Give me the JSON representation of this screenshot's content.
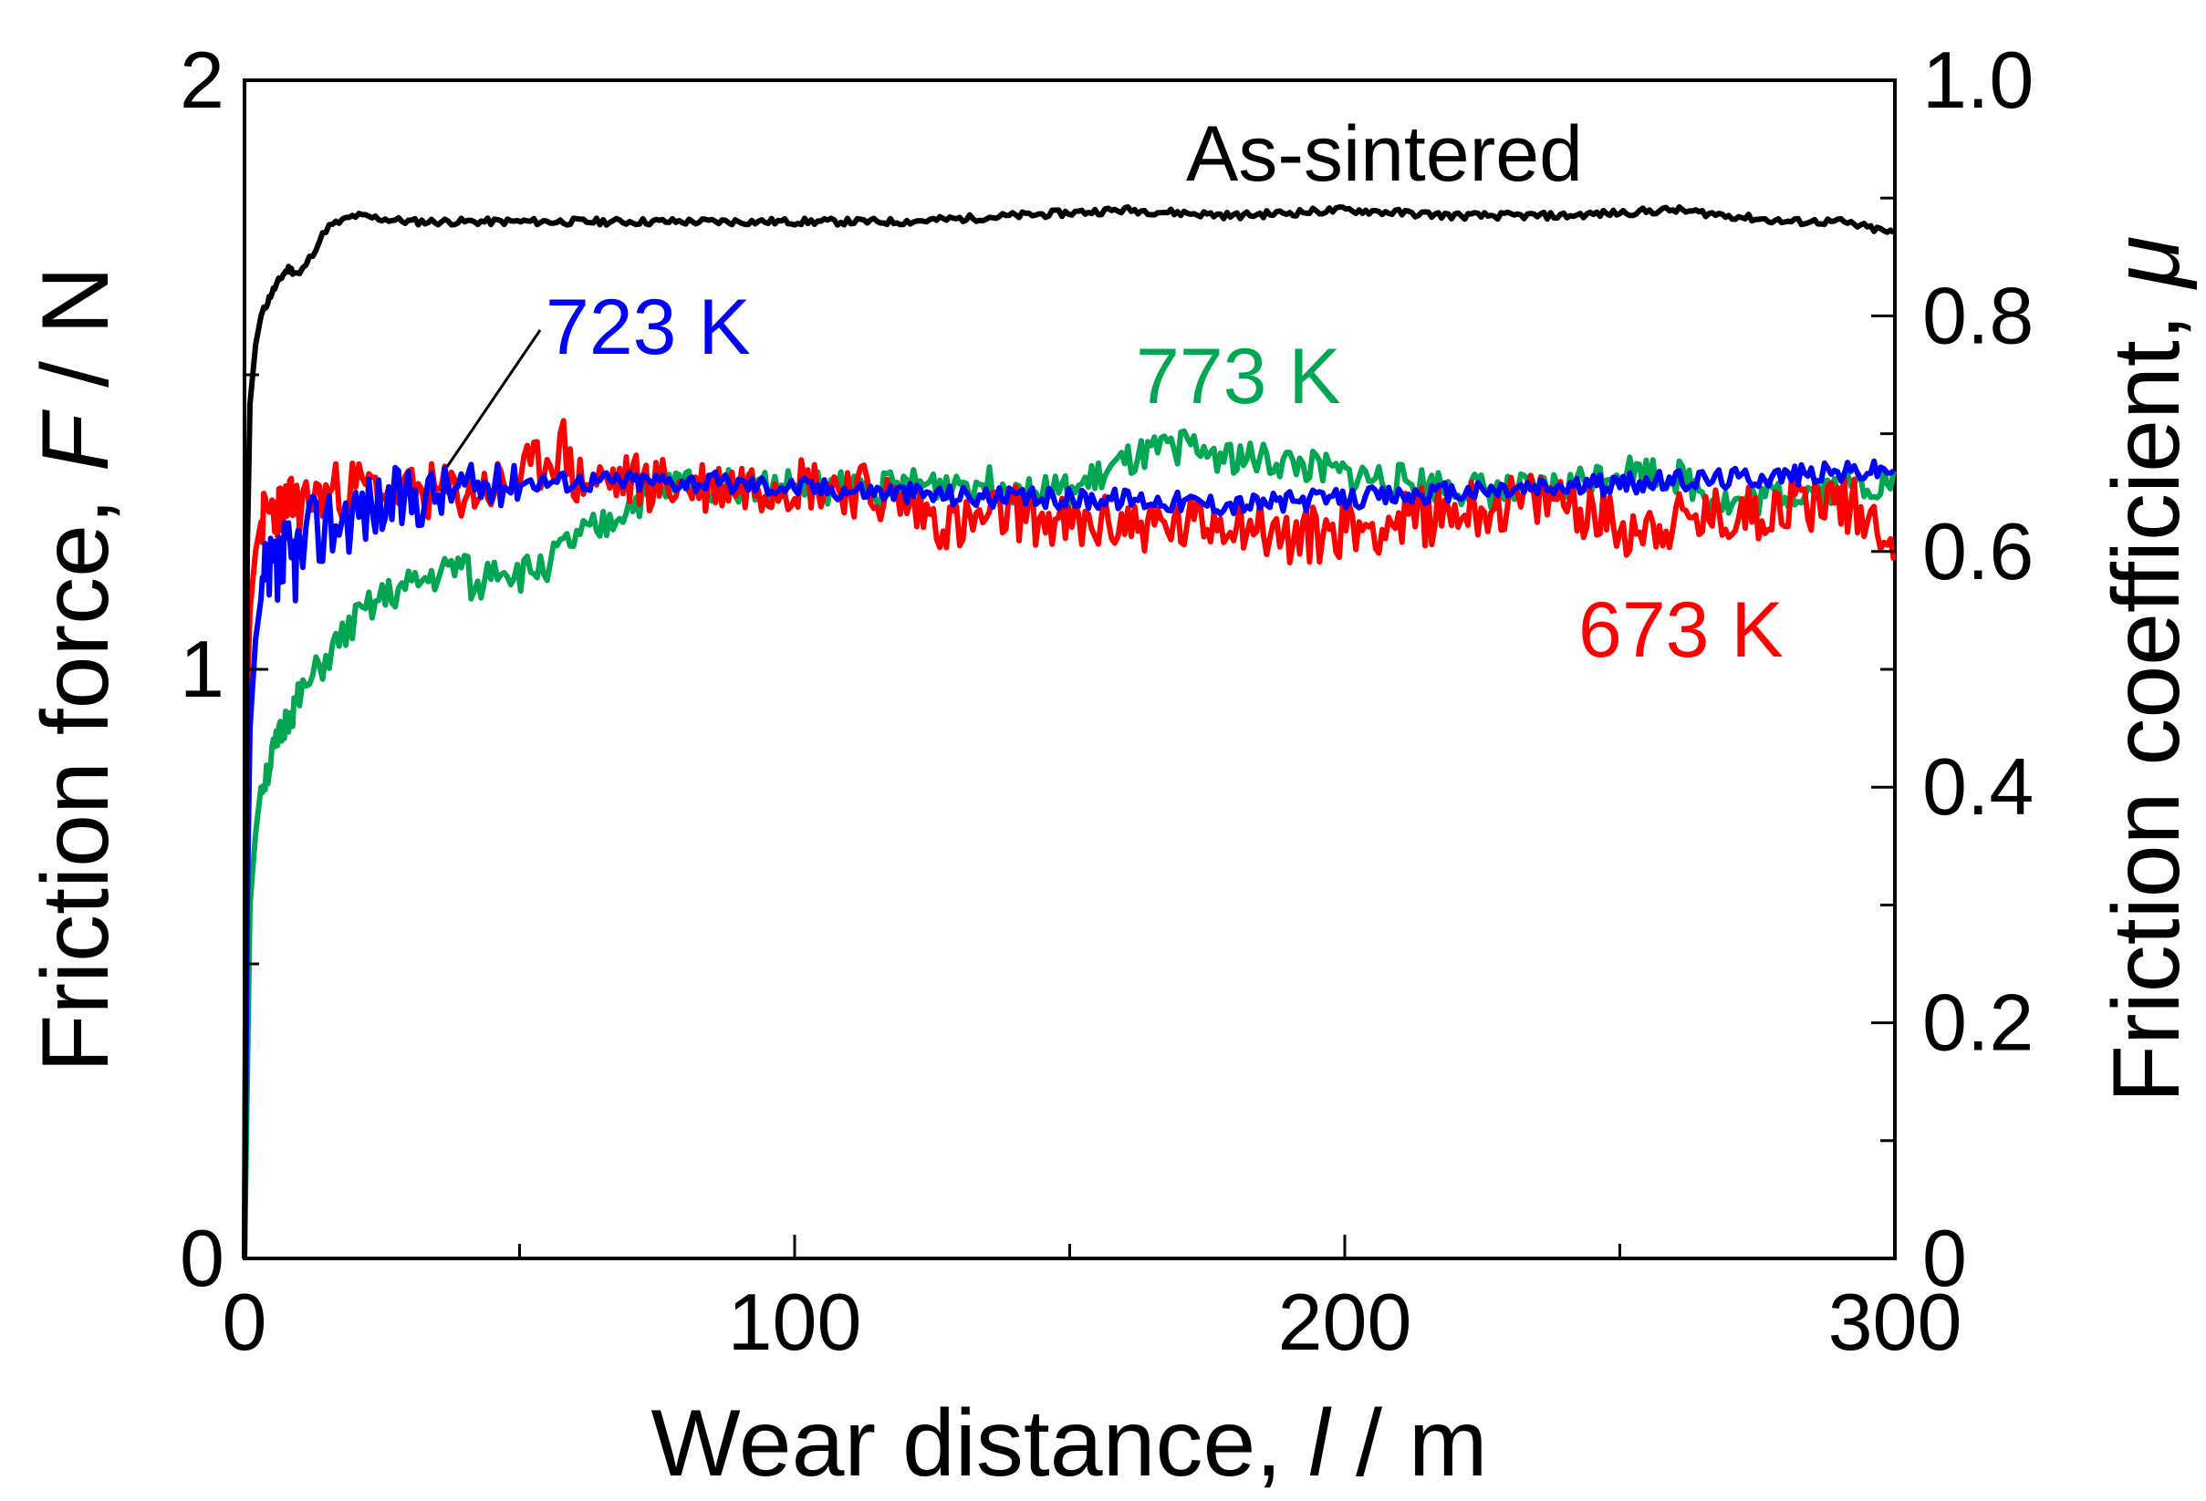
{
  "chart_data": {
    "type": "line",
    "title": "",
    "xlabel": "Wear distance, l / m",
    "xlabel_parts": {
      "main": "Wear distance, ",
      "var": "l",
      "unit": " / m"
    },
    "ylabel": "Friction force, F / N",
    "ylabel_parts": {
      "main": "Friction force, ",
      "var": "F",
      "unit": " / N"
    },
    "y2label": "Friction coefficient, μ",
    "y2label_parts": {
      "main": "Friction coefficient, ",
      "var": "μ"
    },
    "xlim": [
      0,
      300
    ],
    "ylim": [
      0,
      2
    ],
    "y2lim": [
      0,
      1.0
    ],
    "xticks": [
      0,
      100,
      200,
      300
    ],
    "xtick_labels": [
      "0",
      "100",
      "200",
      "300"
    ],
    "yticks": [
      0,
      1,
      2
    ],
    "ytick_labels": [
      "0",
      "1",
      "2"
    ],
    "y2ticks": [
      0,
      0.2,
      0.4,
      0.6,
      0.8,
      1.0
    ],
    "y2tick_labels": [
      "0",
      "0.2",
      "0.4",
      "0.6",
      "0.8",
      "1.0"
    ],
    "grid": false,
    "series": [
      {
        "name": "As-sintered",
        "label": "As-sintered",
        "color": "#000000",
        "x": [
          0,
          0.5,
          1,
          2,
          3,
          5,
          7,
          8,
          10,
          12,
          15,
          20,
          30,
          40,
          60,
          80,
          100,
          120,
          140,
          160,
          180,
          200,
          220,
          240,
          260,
          280,
          290,
          300
        ],
        "y": [
          0,
          1.2,
          1.45,
          1.55,
          1.6,
          1.64,
          1.67,
          1.68,
          1.67,
          1.7,
          1.75,
          1.77,
          1.76,
          1.76,
          1.76,
          1.76,
          1.76,
          1.76,
          1.77,
          1.78,
          1.77,
          1.78,
          1.77,
          1.77,
          1.78,
          1.76,
          1.76,
          1.74
        ]
      },
      {
        "name": "673 K",
        "label": "673 K",
        "color": "#ff0000",
        "x": [
          0,
          0.5,
          1,
          2,
          3,
          5,
          10,
          15,
          20,
          30,
          40,
          50,
          58,
          60,
          70,
          80,
          100,
          110,
          120,
          130,
          140,
          150,
          160,
          170,
          180,
          190,
          200,
          210,
          220,
          230,
          240,
          250,
          260,
          270,
          280,
          290,
          300
        ],
        "y": [
          0,
          0.95,
          1.1,
          1.2,
          1.25,
          1.27,
          1.28,
          1.3,
          1.31,
          1.3,
          1.3,
          1.32,
          1.38,
          1.32,
          1.32,
          1.31,
          1.32,
          1.31,
          1.28,
          1.24,
          1.27,
          1.24,
          1.25,
          1.24,
          1.26,
          1.22,
          1.24,
          1.25,
          1.27,
          1.28,
          1.29,
          1.24,
          1.25,
          1.26,
          1.28,
          1.29,
          1.23
        ]
      },
      {
        "name": "723 K",
        "label": "723 K",
        "color": "#0000ff",
        "x": [
          0,
          0.5,
          1,
          2,
          3,
          5,
          8,
          10,
          15,
          20,
          25,
          30,
          35,
          40,
          45,
          50,
          60,
          80,
          100,
          120,
          140,
          160,
          180,
          200,
          220,
          240,
          260,
          280,
          300
        ],
        "y": [
          0,
          0.6,
          0.9,
          1.05,
          1.12,
          1.15,
          1.18,
          1.2,
          1.25,
          1.27,
          1.28,
          1.29,
          1.3,
          1.31,
          1.31,
          1.32,
          1.32,
          1.32,
          1.31,
          1.3,
          1.29,
          1.29,
          1.28,
          1.29,
          1.3,
          1.31,
          1.32,
          1.33,
          1.34
        ]
      },
      {
        "name": "773 K",
        "label": "773 K",
        "color": "#00a651",
        "x": [
          0,
          1,
          2,
          3,
          5,
          8,
          10,
          15,
          20,
          25,
          30,
          35,
          40,
          42,
          45,
          50,
          55,
          60,
          65,
          70,
          75,
          80,
          90,
          100,
          110,
          120,
          130,
          140,
          150,
          160,
          170,
          180,
          190,
          200,
          210,
          220,
          230,
          240,
          250,
          260,
          270,
          280,
          290,
          300
        ],
        "y": [
          0,
          0.6,
          0.72,
          0.8,
          0.85,
          0.92,
          0.95,
          1.02,
          1.08,
          1.12,
          1.14,
          1.16,
          1.18,
          1.12,
          1.18,
          1.16,
          1.18,
          1.22,
          1.24,
          1.28,
          1.3,
          1.32,
          1.31,
          1.31,
          1.31,
          1.31,
          1.32,
          1.31,
          1.3,
          1.35,
          1.38,
          1.36,
          1.35,
          1.33,
          1.32,
          1.31,
          1.3,
          1.31,
          1.34,
          1.33,
          1.28,
          1.3,
          1.31,
          1.32
        ]
      }
    ]
  },
  "colors": {
    "as_sintered": "#000000",
    "k673": "#ff0000",
    "k723": "#0000ff",
    "k773": "#00a651"
  }
}
